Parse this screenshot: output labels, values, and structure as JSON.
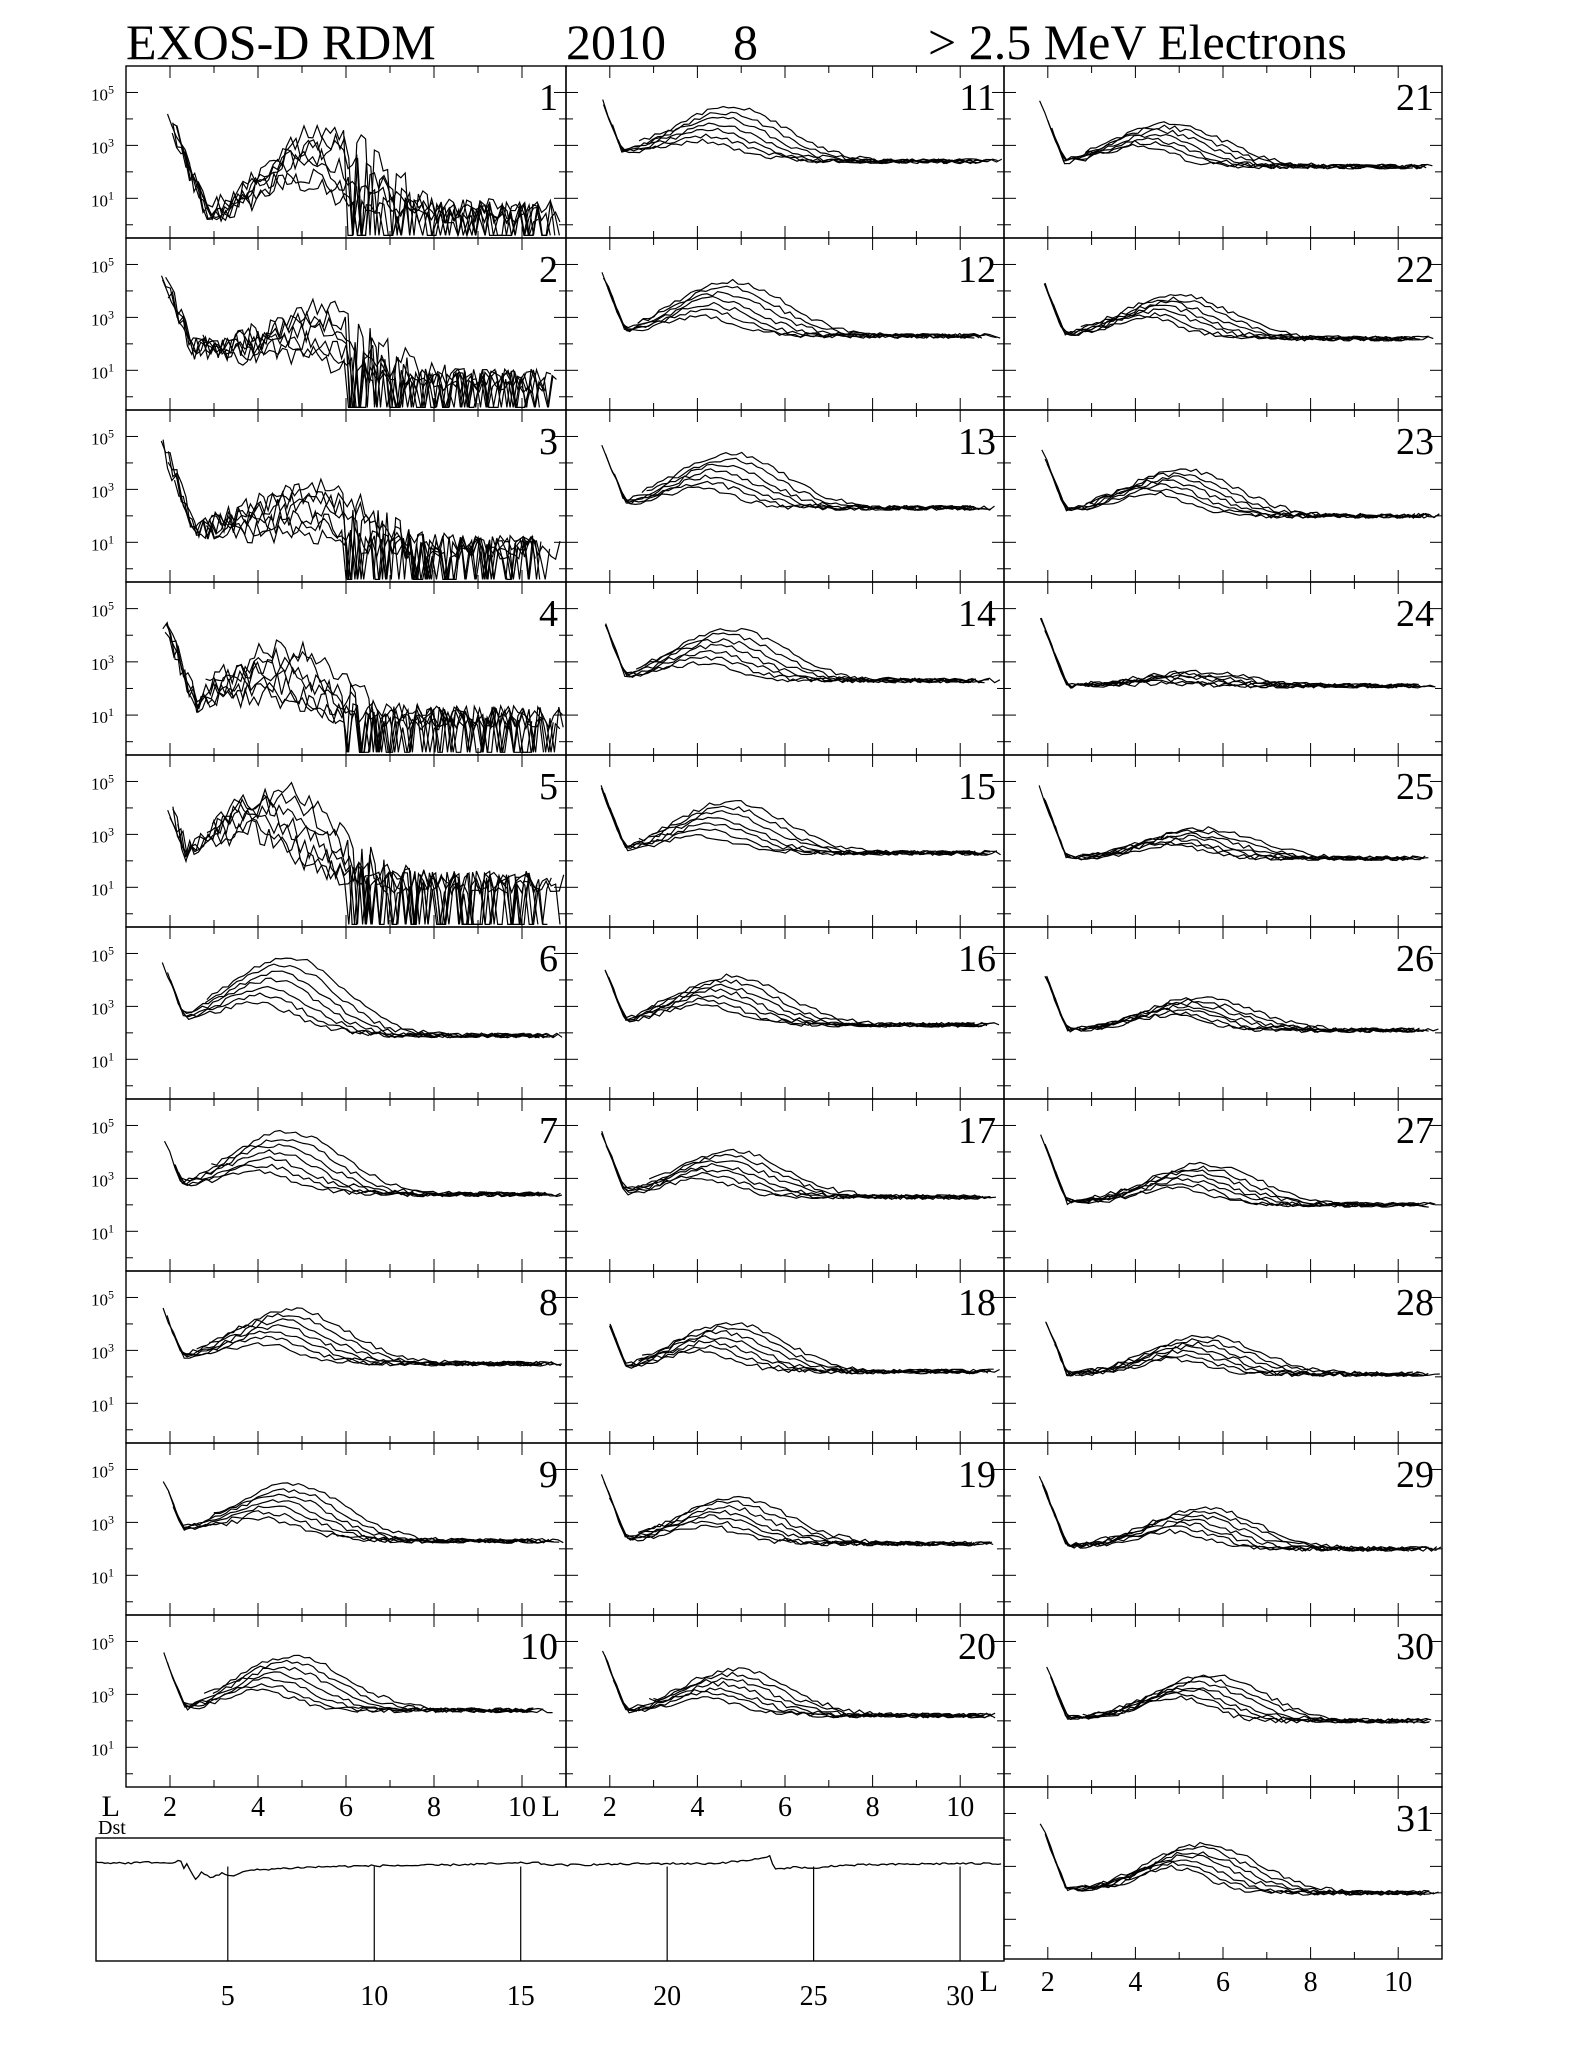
{
  "title": {
    "instrument": "EXOS-D RDM",
    "year": "2010",
    "month": "8",
    "energy": "> 2.5  MeV Electrons"
  },
  "chart_data": {
    "type": "line",
    "description_of_y": "log count rate, ticks 10^1, 10^3, 10^5",
    "y_scale": "log",
    "ytick_base": "10",
    "ytick_exponents": [
      "5",
      "3",
      "1"
    ],
    "ylim_log10": [
      -0.5,
      6.0
    ],
    "xlim": [
      1.0,
      11.0
    ],
    "x_label": "L",
    "x_tick_labels": [
      "2",
      "4",
      "6",
      "8",
      "10"
    ],
    "grid": false,
    "panels": [
      {
        "day": "1",
        "peak_L": 5.2,
        "peak": 2.6,
        "slot": 0.3,
        "tail": 0.5,
        "noisy": true,
        "spread": 0.9
      },
      {
        "day": "2",
        "peak_L": 5.1,
        "peak": 2.5,
        "slot": 1.8,
        "tail": 0.6,
        "noisy": true,
        "spread": 0.8
      },
      {
        "day": "3",
        "peak_L": 4.9,
        "peak": 2.3,
        "slot": 1.5,
        "tail": 0.8,
        "noisy": true,
        "spread": 0.8
      },
      {
        "day": "4",
        "peak_L": 4.2,
        "peak": 2.6,
        "slot": 1.2,
        "tail": 0.9,
        "noisy": true,
        "spread": 0.8
      },
      {
        "day": "5",
        "peak_L": 4.1,
        "peak": 3.9,
        "slot": 2.1,
        "tail": 1.2,
        "noisy": true,
        "spread": 0.7
      },
      {
        "day": "6",
        "peak_L": 4.3,
        "peak": 4.0,
        "slot": 2.5,
        "tail": 1.9,
        "noisy": false,
        "spread": 0.8
      },
      {
        "day": "7",
        "peak_L": 4.3,
        "peak": 4.0,
        "slot": 2.7,
        "tail": 2.4,
        "noisy": false,
        "spread": 0.7
      },
      {
        "day": "8",
        "peak_L": 4.4,
        "peak": 3.9,
        "slot": 2.7,
        "tail": 2.5,
        "noisy": false,
        "spread": 0.6
      },
      {
        "day": "9",
        "peak_L": 4.4,
        "peak": 3.8,
        "slot": 2.7,
        "tail": 2.3,
        "noisy": false,
        "spread": 0.6
      },
      {
        "day": "10",
        "peak_L": 4.4,
        "peak": 3.8,
        "slot": 2.4,
        "tail": 2.4,
        "noisy": false,
        "spread": 0.6
      },
      {
        "day": "11",
        "peak_L": 4.4,
        "peak": 3.8,
        "slot": 2.7,
        "tail": 2.4,
        "noisy": false,
        "spread": 0.6
      },
      {
        "day": "12",
        "peak_L": 4.4,
        "peak": 3.7,
        "slot": 2.4,
        "tail": 2.3,
        "noisy": false,
        "spread": 0.6
      },
      {
        "day": "13",
        "peak_L": 4.4,
        "peak": 3.7,
        "slot": 2.4,
        "tail": 2.3,
        "noisy": false,
        "spread": 0.6
      },
      {
        "day": "14",
        "peak_L": 4.4,
        "peak": 3.6,
        "slot": 2.4,
        "tail": 2.3,
        "noisy": false,
        "spread": 0.6
      },
      {
        "day": "15",
        "peak_L": 4.4,
        "peak": 3.6,
        "slot": 2.4,
        "tail": 2.3,
        "noisy": false,
        "spread": 0.6
      },
      {
        "day": "16",
        "peak_L": 4.4,
        "peak": 3.6,
        "slot": 2.4,
        "tail": 2.3,
        "noisy": false,
        "spread": 0.5
      },
      {
        "day": "17",
        "peak_L": 4.4,
        "peak": 3.5,
        "slot": 2.4,
        "tail": 2.3,
        "noisy": false,
        "spread": 0.5
      },
      {
        "day": "18",
        "peak_L": 4.4,
        "peak": 3.5,
        "slot": 2.3,
        "tail": 2.2,
        "noisy": false,
        "spread": 0.5
      },
      {
        "day": "19",
        "peak_L": 4.5,
        "peak": 3.4,
        "slot": 2.3,
        "tail": 2.2,
        "noisy": false,
        "spread": 0.5
      },
      {
        "day": "20",
        "peak_L": 4.5,
        "peak": 3.4,
        "slot": 2.3,
        "tail": 2.2,
        "noisy": false,
        "spread": 0.5
      },
      {
        "day": "21",
        "peak_L": 4.4,
        "peak": 3.4,
        "slot": 2.3,
        "tail": 2.2,
        "noisy": false,
        "spread": 0.4
      },
      {
        "day": "22",
        "peak_L": 4.6,
        "peak": 3.4,
        "slot": 2.3,
        "tail": 2.2,
        "noisy": false,
        "spread": 0.4
      },
      {
        "day": "23",
        "peak_L": 4.7,
        "peak": 3.3,
        "slot": 2.2,
        "tail": 2.0,
        "noisy": false,
        "spread": 0.4
      },
      {
        "day": "24",
        "peak_L": 5.0,
        "peak": 2.4,
        "slot": 2.1,
        "tail": 2.1,
        "noisy": false,
        "spread": 0.2
      },
      {
        "day": "25",
        "peak_L": 5.1,
        "peak": 2.9,
        "slot": 2.1,
        "tail": 2.1,
        "noisy": false,
        "spread": 0.3
      },
      {
        "day": "26",
        "peak_L": 5.1,
        "peak": 3.0,
        "slot": 2.1,
        "tail": 2.1,
        "noisy": false,
        "spread": 0.3
      },
      {
        "day": "27",
        "peak_L": 5.2,
        "peak": 3.1,
        "slot": 2.1,
        "tail": 2.0,
        "noisy": false,
        "spread": 0.4
      },
      {
        "day": "28",
        "peak_L": 5.2,
        "peak": 3.1,
        "slot": 2.1,
        "tail": 2.1,
        "noisy": false,
        "spread": 0.4
      },
      {
        "day": "29",
        "peak_L": 5.2,
        "peak": 3.1,
        "slot": 2.1,
        "tail": 2.0,
        "noisy": false,
        "spread": 0.4
      },
      {
        "day": "30",
        "peak_L": 5.3,
        "peak": 3.3,
        "slot": 2.1,
        "tail": 2.0,
        "noisy": false,
        "spread": 0.4
      },
      {
        "day": "31",
        "peak_L": 5.2,
        "peak": 3.4,
        "slot": 2.1,
        "tail": 2.0,
        "noisy": false,
        "spread": 0.4
      }
    ],
    "dst": {
      "label": "Dst",
      "x_tick_labels": [
        "5",
        "10",
        "15",
        "20",
        "25",
        "30"
      ],
      "xlim": [
        0.0,
        31.0
      ],
      "ylim": [
        -200,
        50
      ],
      "values": [
        [
          0.0,
          0
        ],
        [
          1.0,
          -1
        ],
        [
          2.0,
          1
        ],
        [
          2.5,
          -2
        ],
        [
          2.9,
          4
        ],
        [
          3.0,
          -10
        ],
        [
          3.1,
          -4
        ],
        [
          3.4,
          -35
        ],
        [
          3.6,
          -20
        ],
        [
          3.9,
          -30
        ],
        [
          4.3,
          -22
        ],
        [
          4.7,
          -27
        ],
        [
          5.2,
          -16
        ],
        [
          6.0,
          -13
        ],
        [
          7.0,
          -10
        ],
        [
          8.0,
          -8
        ],
        [
          9.0,
          -7
        ],
        [
          10.0,
          -6
        ],
        [
          11.0,
          -6
        ],
        [
          12.0,
          -5
        ],
        [
          13.0,
          -3
        ],
        [
          14.0,
          -2
        ],
        [
          15.0,
          0
        ],
        [
          15.4,
          -4
        ],
        [
          16.0,
          -5
        ],
        [
          17.0,
          -4
        ],
        [
          18.0,
          -3
        ],
        [
          19.0,
          -2
        ],
        [
          20.0,
          -2
        ],
        [
          21.0,
          -2
        ],
        [
          22.0,
          3
        ],
        [
          22.7,
          8
        ],
        [
          23.0,
          12
        ],
        [
          23.2,
          -14
        ],
        [
          23.6,
          -10
        ],
        [
          24.0,
          -9
        ],
        [
          24.6,
          -13
        ],
        [
          25.0,
          -7
        ],
        [
          26.0,
          -5
        ],
        [
          27.0,
          -4
        ],
        [
          28.0,
          -3
        ],
        [
          29.0,
          -2
        ],
        [
          30.0,
          -2
        ],
        [
          31.0,
          -2
        ]
      ]
    }
  }
}
